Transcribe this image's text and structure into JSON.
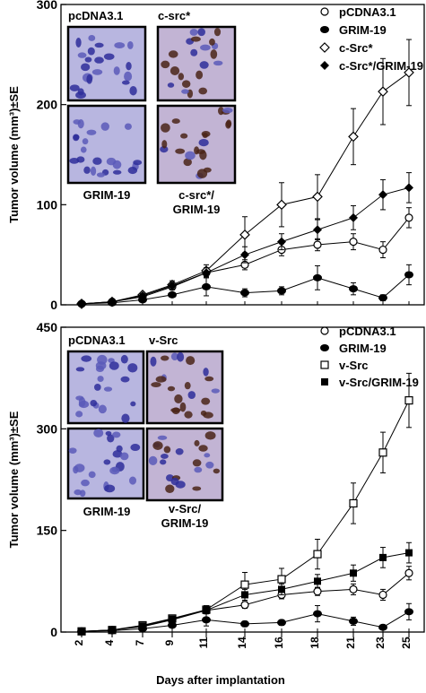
{
  "chart_data": [
    {
      "type": "line",
      "panel": "top",
      "ylabel": "Tumor volume (mm³)±SE",
      "ylim": [
        0,
        300
      ],
      "yticks": [
        0,
        100,
        200,
        300
      ],
      "x": [
        2,
        4,
        7,
        9,
        11,
        14,
        16,
        18,
        21,
        23,
        25
      ],
      "legend_position": "top-right",
      "series": [
        {
          "name": "pCDNA3.1",
          "marker": "open-circle",
          "values": [
            1,
            3,
            8,
            18,
            32,
            40,
            55,
            60,
            63,
            55,
            87
          ],
          "errors": [
            0.5,
            1,
            2,
            3,
            4,
            5,
            6,
            6,
            8,
            8,
            10
          ]
        },
        {
          "name": "GRIM-19",
          "marker": "filled-circle",
          "values": [
            1,
            2,
            5,
            10,
            18,
            12,
            14,
            27,
            16,
            7,
            30
          ],
          "errors": [
            0.5,
            1,
            1,
            2,
            9,
            4,
            4,
            12,
            6,
            3,
            10
          ]
        },
        {
          "name": "c-Src*",
          "marker": "open-diamond",
          "values": [
            1,
            3,
            10,
            20,
            34,
            70,
            100,
            108,
            168,
            213,
            232
          ],
          "errors": [
            0.5,
            1,
            2,
            4,
            6,
            18,
            22,
            22,
            28,
            33,
            33
          ]
        },
        {
          "name": "c-Src*/GRIM-19",
          "marker": "filled-diamond",
          "values": [
            1,
            3,
            9,
            19,
            32,
            50,
            63,
            75,
            87,
            110,
            117
          ],
          "errors": [
            0.5,
            1,
            2,
            3,
            5,
            8,
            8,
            10,
            12,
            15,
            15
          ]
        }
      ],
      "inset": {
        "labels": [
          "pcDNA3.1",
          "c-src*",
          "GRIM-19",
          "c-src*/",
          "GRIM-19"
        ]
      }
    },
    {
      "type": "line",
      "panel": "bottom",
      "ylabel": "Tumor volume (mm³)±SE",
      "xlabel": "Days after implantation",
      "ylim": [
        0,
        450
      ],
      "yticks": [
        0,
        150,
        300,
        450
      ],
      "x": [
        2,
        4,
        7,
        9,
        11,
        14,
        16,
        18,
        21,
        23,
        25
      ],
      "xticks": [
        "2",
        "4",
        "7",
        "9",
        "11",
        "14",
        "16",
        "18",
        "21",
        "23",
        "25"
      ],
      "legend_position": "top-right",
      "series": [
        {
          "name": "pCDNA3.1",
          "marker": "open-circle",
          "values": [
            1,
            3,
            8,
            18,
            32,
            40,
            55,
            60,
            63,
            55,
            87
          ],
          "errors": [
            0.5,
            1,
            2,
            3,
            4,
            5,
            6,
            6,
            8,
            8,
            10
          ]
        },
        {
          "name": "GRIM-19",
          "marker": "filled-circle",
          "values": [
            1,
            2,
            5,
            10,
            18,
            12,
            14,
            27,
            16,
            7,
            30
          ],
          "errors": [
            0.5,
            1,
            1,
            2,
            9,
            4,
            4,
            12,
            6,
            3,
            12
          ]
        },
        {
          "name": "v-Src",
          "marker": "open-square",
          "values": [
            1,
            3,
            10,
            20,
            33,
            70,
            78,
            115,
            190,
            265,
            342
          ],
          "errors": [
            0.5,
            1,
            2,
            4,
            6,
            18,
            16,
            22,
            30,
            30,
            40
          ]
        },
        {
          "name": "v-Src/GRIM-19",
          "marker": "filled-square",
          "values": [
            1,
            3,
            9,
            19,
            32,
            55,
            63,
            75,
            87,
            110,
            117
          ],
          "errors": [
            0.5,
            1,
            2,
            3,
            5,
            8,
            8,
            10,
            12,
            15,
            15
          ]
        }
      ],
      "inset": {
        "labels": [
          "pCDNA3.1",
          "v-Src",
          "GRIM-19",
          "v-Src/",
          "GRIM-19"
        ]
      }
    }
  ]
}
